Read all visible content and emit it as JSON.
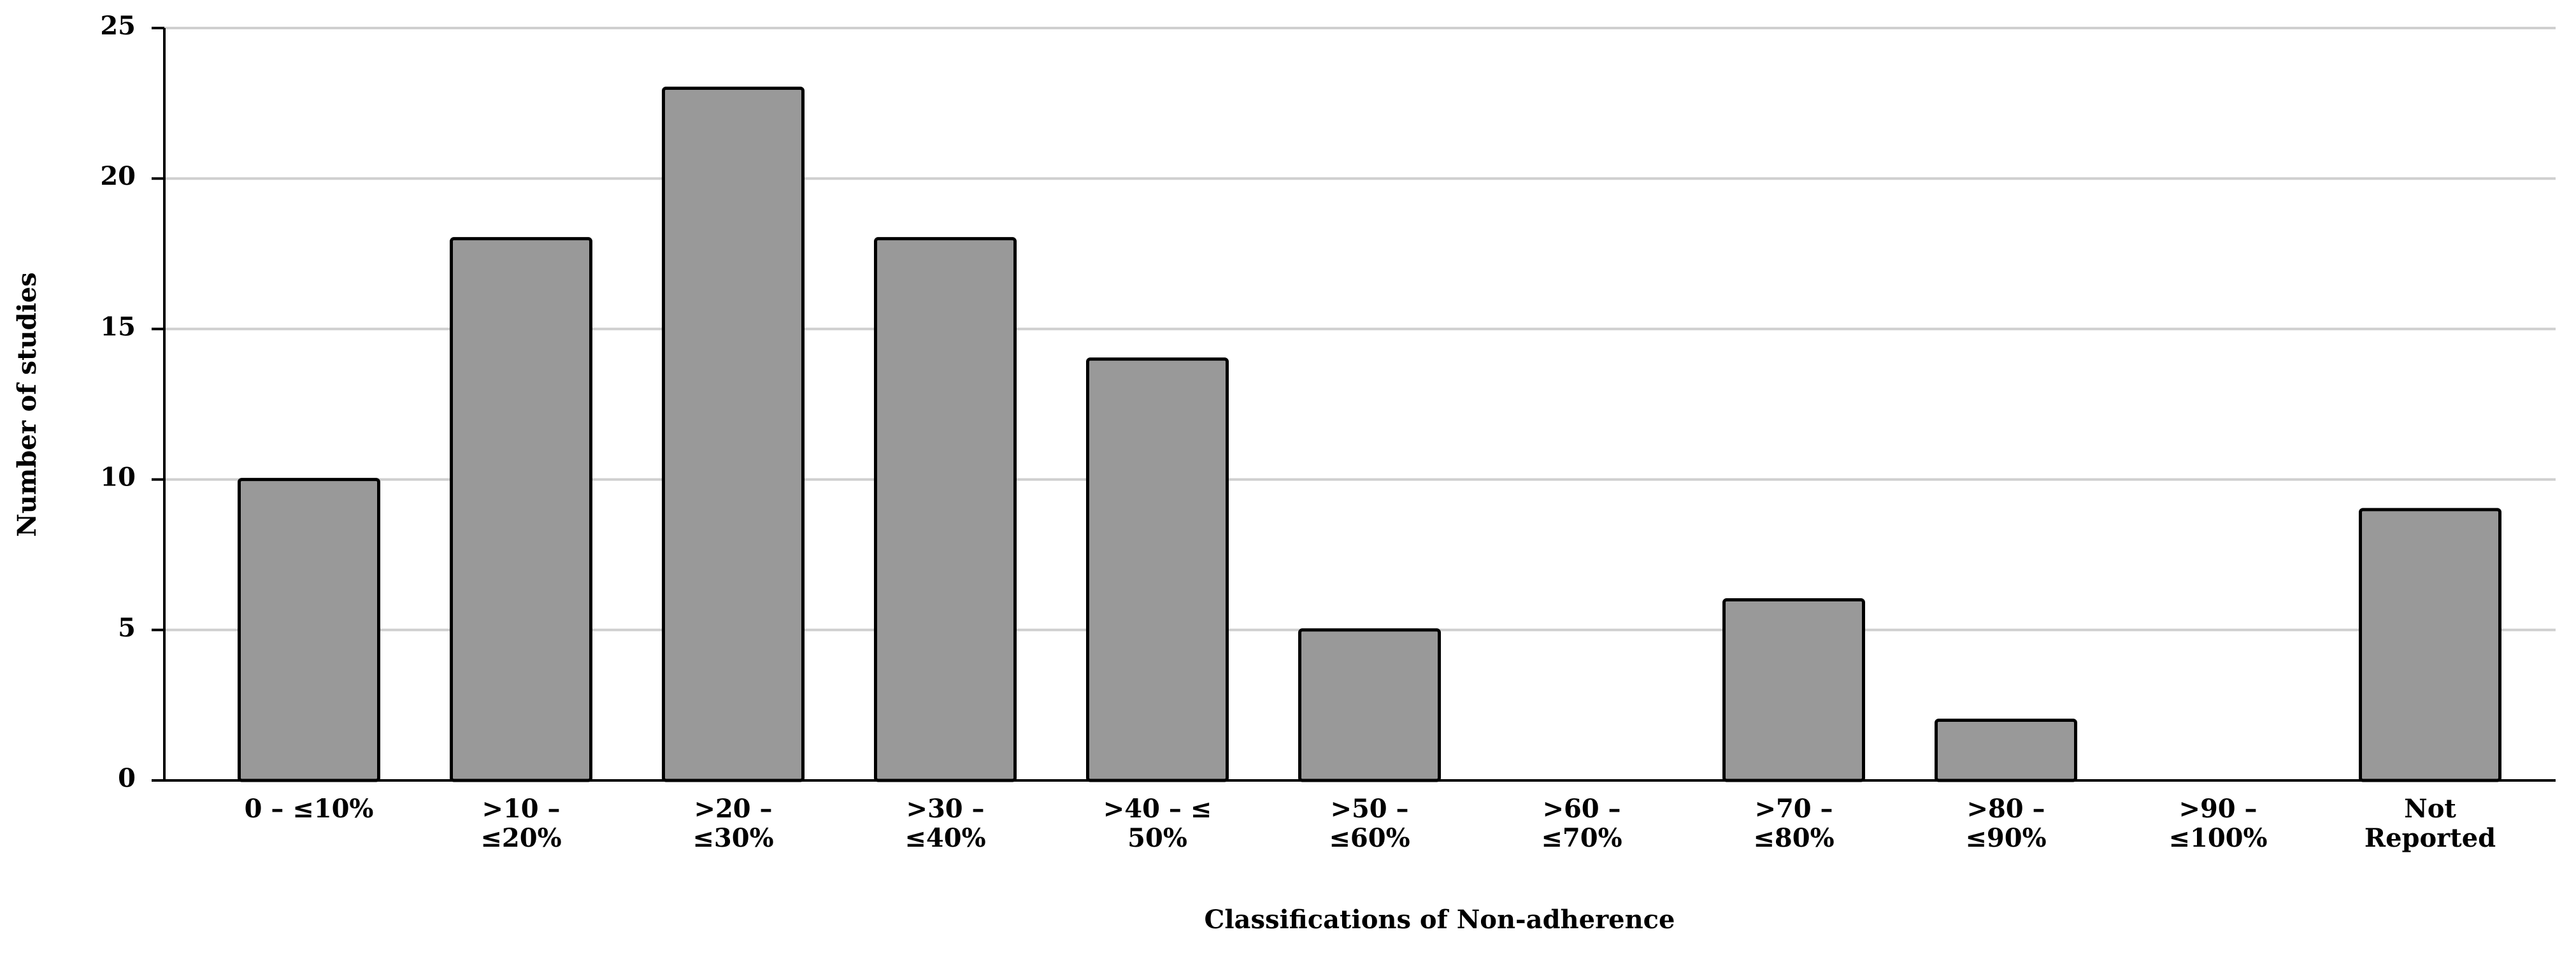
{
  "chart_data": {
    "type": "bar",
    "x_label": "Classifications of Non-adherence",
    "y_label": "Number of studies",
    "categories": [
      "0 – ≤10%",
      ">10 –\n≤20%",
      ">20 –\n≤30%",
      ">30 –\n≤40%",
      ">40 – ≤\n50%",
      ">50 –\n≤60%",
      ">60 –\n≤70%",
      ">70 –\n≤80%",
      ">80 –\n≤90%",
      ">90 –\n≤100%",
      "Not\nReported"
    ],
    "values": [
      10,
      18,
      23,
      18,
      14,
      5,
      0,
      6,
      2,
      0,
      9
    ],
    "color": "#999999",
    "ylim": [
      0,
      25
    ],
    "yticks": [
      0,
      5,
      10,
      15,
      20,
      25
    ],
    "grid": true
  }
}
